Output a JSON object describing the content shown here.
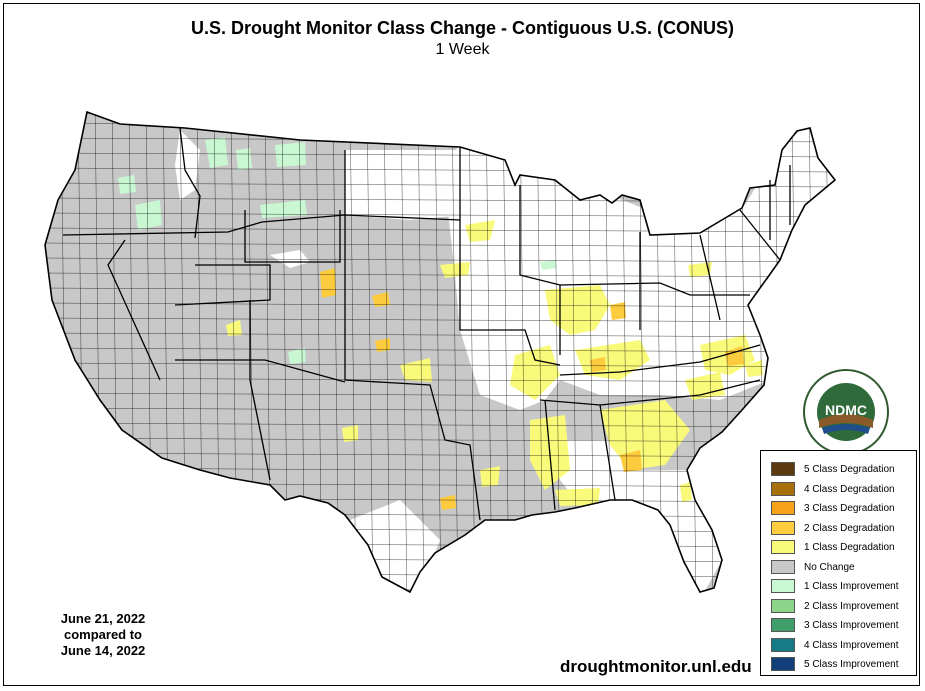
{
  "title": "U.S. Drought Monitor Class Change - Contiguous U.S. (CONUS)",
  "subtitle": "1 Week",
  "dates": {
    "line1": "June 21, 2022",
    "line2": "compared to",
    "line3": "June 14, 2022"
  },
  "url": "droughtmonitor.unl.edu",
  "logo": {
    "center_text": "NDMC",
    "ring_text": "NATIONAL DROUGHT MITIGATION CENTER",
    "bottom_text": "UNIVERSITY OF NEBRASKA"
  },
  "legend": [
    {
      "label": "5 Class Degradation",
      "color": "#5a3a0e"
    },
    {
      "label": "4 Class Degradation",
      "color": "#a8700a"
    },
    {
      "label": "3 Class Degradation",
      "color": "#f7a11a"
    },
    {
      "label": "2 Class Degradation",
      "color": "#fdcc3e"
    },
    {
      "label": "1 Class Degradation",
      "color": "#fafa7a"
    },
    {
      "label": "No Change",
      "color": "#c8c8c8"
    },
    {
      "label": "1 Class Improvement",
      "color": "#c8f7d2"
    },
    {
      "label": "2 Class Improvement",
      "color": "#8bd48a"
    },
    {
      "label": "3 Class Improvement",
      "color": "#3f9e6a"
    },
    {
      "label": "4 Class Improvement",
      "color": "#167b84"
    },
    {
      "label": "5 Class Improvement",
      "color": "#103f79"
    }
  ],
  "map_colors": {
    "no_change": "#c8c8c8",
    "degradation_1": "#fafa7a",
    "degradation_2": "#fdcc3e",
    "improvement_1": "#c8f7d2",
    "none": "#ffffff",
    "border": "#000000"
  }
}
